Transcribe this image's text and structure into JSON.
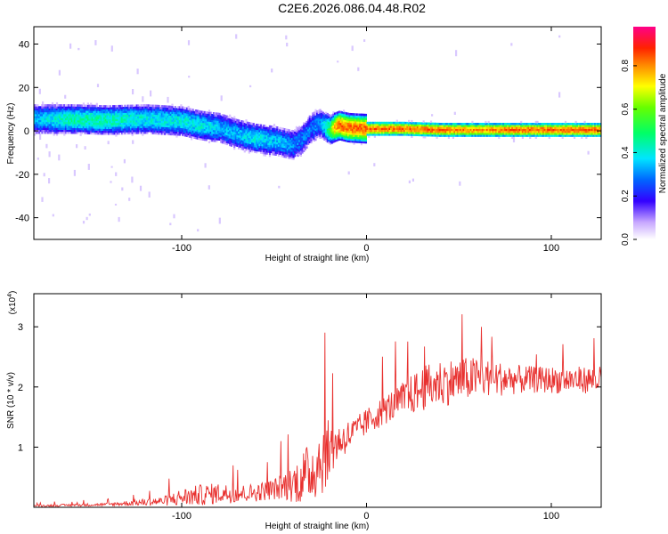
{
  "title": "C2E6.2026.086.04.48.R02",
  "chart_data": [
    {
      "type": "heatmap",
      "xlabel": "Height of straight line (km)",
      "ylabel": "Frequency (Hz)",
      "xlim": [
        -180,
        127
      ],
      "ylim": [
        -50,
        48
      ],
      "xticks": [
        -100,
        0,
        100
      ],
      "yticks": [
        -40,
        -20,
        0,
        20,
        40
      ],
      "colorbar": {
        "label": "Normalized spectral amplitude",
        "range": [
          0,
          0.98
        ],
        "ticks": [
          "0.0",
          "0.2",
          "0.4",
          "0.6",
          "0.8"
        ],
        "tick_values": [
          0.0,
          0.2,
          0.4,
          0.6,
          0.8
        ]
      },
      "ridge": {
        "x": [
          -180,
          -160,
          -140,
          -120,
          -100,
          -90,
          -80,
          -70,
          -60,
          -50,
          -45,
          -40,
          -35,
          -30,
          -25,
          -20,
          -18,
          -15,
          -10,
          0,
          20,
          40,
          60,
          80,
          100,
          127
        ],
        "freq": [
          6,
          6,
          5.5,
          6,
          5,
          3,
          2,
          -1,
          -3,
          -4,
          -5,
          -6,
          -3,
          2,
          4,
          1,
          2,
          3,
          2,
          1.5,
          1.5,
          1,
          1,
          1,
          1,
          1
        ],
        "amplitude": [
          0.35,
          0.45,
          0.45,
          0.4,
          0.4,
          0.4,
          0.35,
          0.35,
          0.4,
          0.35,
          0.35,
          0.3,
          0.3,
          0.3,
          0.3,
          0.55,
          0.75,
          0.85,
          0.85,
          0.85,
          0.85,
          0.85,
          0.8,
          0.85,
          0.85,
          0.85
        ]
      }
    },
    {
      "type": "line",
      "xlabel": "Height of straight line (km)",
      "ylabel": "SNR (10 * v/v)",
      "y_multiplier": "(x10",
      "y_multiplier_exp": "4",
      "y_multiplier_close": ")",
      "xlim": [
        -180,
        127
      ],
      "ylim": [
        0,
        3.55
      ],
      "xticks": [
        -100,
        0,
        100
      ],
      "yticks": [
        1,
        2,
        3
      ],
      "color": "#e8312f",
      "envelope": {
        "x": [
          -180,
          -140,
          -110,
          -100,
          -90,
          -80,
          -70,
          -60,
          -50,
          -40,
          -35,
          -30,
          -25,
          -20,
          -15,
          -10,
          -5,
          0,
          10,
          20,
          30,
          40,
          50,
          60,
          70,
          80,
          90,
          100,
          110,
          127
        ],
        "baseline": [
          0.02,
          0.04,
          0.08,
          0.12,
          0.15,
          0.18,
          0.18,
          0.2,
          0.25,
          0.3,
          0.35,
          0.45,
          0.6,
          0.8,
          1.0,
          1.1,
          1.2,
          1.35,
          1.55,
          1.7,
          1.85,
          1.95,
          2.0,
          2.05,
          2.05,
          2.05,
          2.05,
          2.05,
          2.05,
          2.05
        ],
        "spread": [
          0.03,
          0.05,
          0.15,
          0.3,
          0.35,
          0.35,
          0.3,
          0.3,
          0.35,
          0.6,
          0.9,
          1.0,
          1.3,
          1.0,
          0.6,
          0.55,
          0.5,
          0.45,
          0.5,
          0.6,
          0.75,
          0.8,
          0.75,
          0.7,
          0.6,
          0.5,
          0.45,
          0.45,
          0.45,
          0.45
        ]
      }
    }
  ]
}
